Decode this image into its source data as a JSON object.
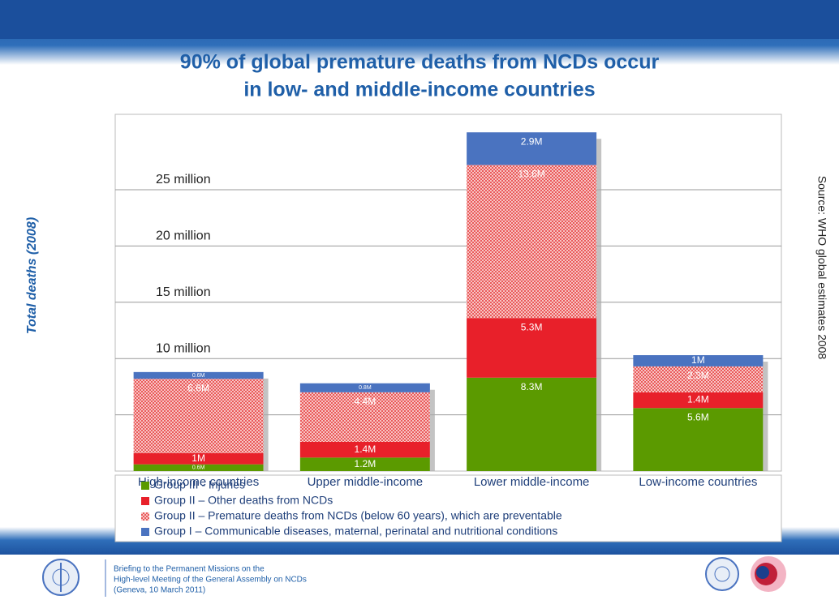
{
  "chart_data": {
    "type": "stacked_bar",
    "title": [
      "90% of global premature deaths from NCDs occur",
      "in low- and middle-income countries"
    ],
    "y_label": "Total deaths (2008)",
    "source": "Source: WHO global estimates 2008",
    "categories": [
      "High-income countries",
      "Upper middle-income",
      "Lower middle-income",
      "Low-income countries"
    ],
    "series": [
      {
        "name": "Group I –  Communicable diseases, maternal, perinatal and nutritional conditions",
        "color": "#5b9a00",
        "values": [
          0.6,
          1.2,
          8.3,
          5.6
        ],
        "value_labels": [
          "0.6M",
          "1.2M",
          "8.3M",
          "5.6M"
        ]
      },
      {
        "name": "Group II – Premature deaths from NCDs (below 60 years), which are preventable",
        "color": "#e8202a",
        "values": [
          1,
          1.4,
          5.3,
          1.4
        ],
        "value_labels": [
          "1M",
          "1.4M",
          "5.3M",
          "1.4M"
        ]
      },
      {
        "name": "Group II – Other deaths from NCDs",
        "color": "#f2a6a6",
        "pattern": "checker",
        "values": [
          6.6,
          4.4,
          13.6,
          2.3
        ],
        "value_labels": [
          "6.6M",
          "4.4M",
          "13.6M",
          "2.3M"
        ]
      },
      {
        "name": "Group III - Injuries",
        "color": "#4a73c0",
        "values": [
          0.6,
          0.8,
          2.9,
          1
        ],
        "value_labels": [
          "0.6M",
          "0.8M",
          "2.9M",
          "1M"
        ]
      }
    ],
    "ylim": [
      0,
      31.7
    ],
    "yticks": [
      {
        "value": 5,
        "label": null
      },
      {
        "value": 10,
        "label": "10 million"
      },
      {
        "value": 15,
        "label": "15 million"
      },
      {
        "value": 20,
        "label": "20 million"
      },
      {
        "value": 25,
        "label": "25 million"
      }
    ],
    "grid": true
  },
  "footer": {
    "lines": [
      "Briefing to the Permanent Missions on the",
      "High-level Meeting of the General Assembly on NCDs",
      "(Geneva, 10 March 2011)"
    ]
  }
}
